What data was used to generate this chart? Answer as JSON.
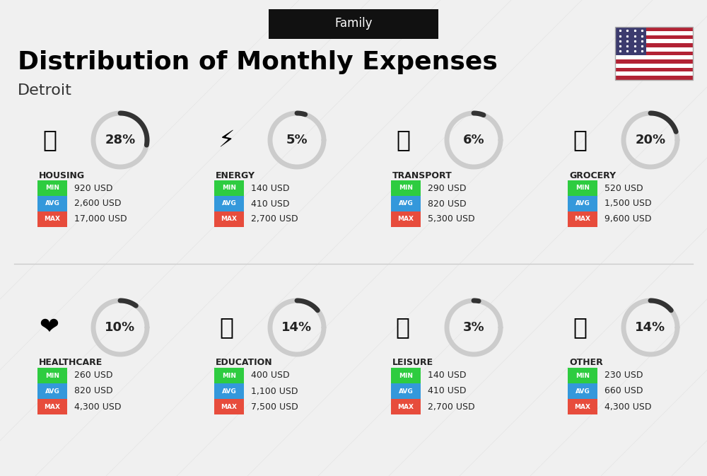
{
  "title": "Distribution of Monthly Expenses",
  "subtitle": "Detroit",
  "header_label": "Family",
  "background_color": "#f0f0f0",
  "categories": [
    {
      "name": "HOUSING",
      "percent": 28,
      "min_val": "920 USD",
      "avg_val": "2,600 USD",
      "max_val": "17,000 USD",
      "icon": "housing",
      "row": 0,
      "col": 0
    },
    {
      "name": "ENERGY",
      "percent": 5,
      "min_val": "140 USD",
      "avg_val": "410 USD",
      "max_val": "2,700 USD",
      "icon": "energy",
      "row": 0,
      "col": 1
    },
    {
      "name": "TRANSPORT",
      "percent": 6,
      "min_val": "290 USD",
      "avg_val": "820 USD",
      "max_val": "5,300 USD",
      "icon": "transport",
      "row": 0,
      "col": 2
    },
    {
      "name": "GROCERY",
      "percent": 20,
      "min_val": "520 USD",
      "avg_val": "1,500 USD",
      "max_val": "9,600 USD",
      "icon": "grocery",
      "row": 0,
      "col": 3
    },
    {
      "name": "HEALTHCARE",
      "percent": 10,
      "min_val": "260 USD",
      "avg_val": "820 USD",
      "max_val": "4,300 USD",
      "icon": "healthcare",
      "row": 1,
      "col": 0
    },
    {
      "name": "EDUCATION",
      "percent": 14,
      "min_val": "400 USD",
      "avg_val": "1,100 USD",
      "max_val": "7,500 USD",
      "icon": "education",
      "row": 1,
      "col": 1
    },
    {
      "name": "LEISURE",
      "percent": 3,
      "min_val": "140 USD",
      "avg_val": "410 USD",
      "max_val": "2,700 USD",
      "icon": "leisure",
      "row": 1,
      "col": 2
    },
    {
      "name": "OTHER",
      "percent": 14,
      "min_val": "230 USD",
      "avg_val": "660 USD",
      "max_val": "4,300 USD",
      "icon": "other",
      "row": 1,
      "col": 3
    }
  ],
  "min_color": "#2ecc40",
  "avg_color": "#3498db",
  "max_color": "#e74c3c",
  "label_color": "#ffffff",
  "text_color": "#222222",
  "arc_color": "#333333",
  "arc_bg_color": "#cccccc"
}
